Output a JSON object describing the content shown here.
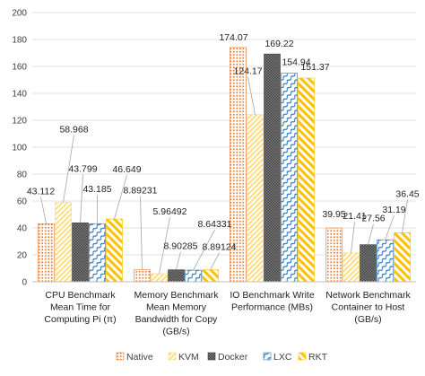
{
  "chart_data": {
    "type": "bar",
    "title": "",
    "xlabel": "",
    "ylabel": "",
    "ylim": [
      0,
      200
    ],
    "yticks": [
      "0",
      "20",
      "40",
      "60",
      "80",
      "100",
      "120",
      "140",
      "160",
      "180",
      "200"
    ],
    "grid": true,
    "legend_position": "bottom",
    "categories": [
      [
        "CPU Benchmark",
        "Mean Time for",
        "Computing Pi (π)"
      ],
      [
        "Memory Benchmark",
        "Mean Memory",
        "Bandwidth for Copy",
        "(GB/s)"
      ],
      [
        "IO Benchmark Write",
        "Performance (MBs)"
      ],
      [
        "Network Benchmark",
        "Container to Host",
        "(GB/s)"
      ]
    ],
    "series": [
      {
        "name": "Native",
        "color": "#ed7d31",
        "pattern": "dots",
        "values": [
          43.112,
          8.89231,
          174.07,
          39.95
        ],
        "labels": [
          "43.112",
          "8.89231",
          "174.07",
          "39.95"
        ]
      },
      {
        "name": "KVM",
        "color": "#ffd966",
        "pattern": "diag",
        "values": [
          58.968,
          5.96492,
          124.17,
          21.41
        ],
        "labels": [
          "58.968",
          "5.96492",
          "124.17",
          "21.41"
        ]
      },
      {
        "name": "Docker",
        "color": "#404040",
        "pattern": "check",
        "values": [
          43.799,
          8.90285,
          169.22,
          27.56
        ],
        "labels": [
          "43.799",
          "8.90285",
          "169.22",
          "27.56"
        ]
      },
      {
        "name": "LXC",
        "color": "#2e75b6",
        "pattern": "wave",
        "values": [
          43.185,
          8.64331,
          154.94,
          31.19
        ],
        "labels": [
          "43.185",
          "8.64331",
          "154.94",
          "31.19"
        ]
      },
      {
        "name": "RKT",
        "color": "#ffc000",
        "pattern": "wideDiag",
        "values": [
          46.649,
          8.89124,
          151.37,
          36.45
        ],
        "labels": [
          "46.649",
          "8.89124",
          "151.37",
          "36.45"
        ]
      }
    ]
  }
}
